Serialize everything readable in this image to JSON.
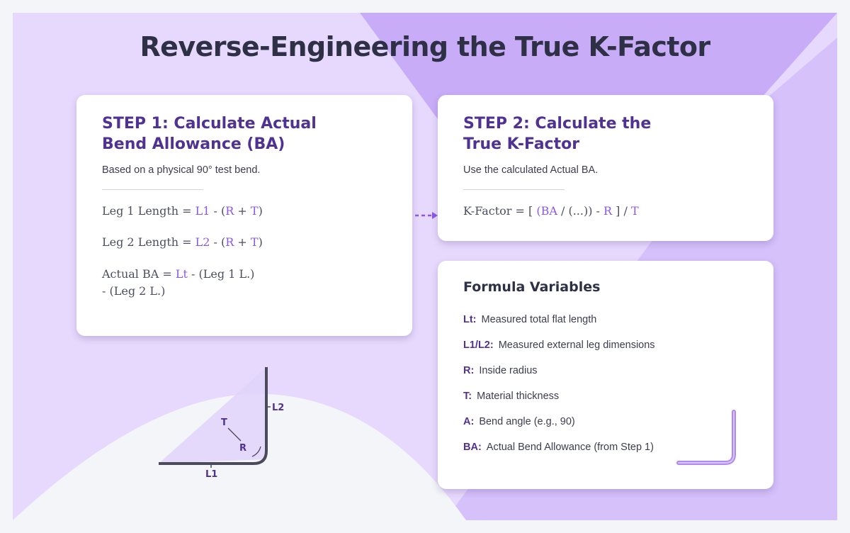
{
  "title": "Reverse-Engineering the True K-Factor",
  "colors": {
    "background": "#e7d9fd",
    "accent_triangle": "#c8acf8",
    "heading": "#2e3146",
    "step_title": "#4f3291",
    "highlight": "#8a58e6"
  },
  "step1": {
    "title_line1": "STEP 1: Calculate Actual",
    "title_line2": "Bend Allowance (BA)",
    "subtitle": "Based on a physical 90° test bend.",
    "formula1": {
      "prefix": "Leg 1 Length = ",
      "var": "L1",
      "mid": " - (",
      "r": "R",
      "plus": " + ",
      "t": "T",
      "end": ")"
    },
    "formula2": {
      "prefix": "Leg 2 Length = ",
      "var": "L2",
      "mid": " - (",
      "r": "R",
      "plus": " + ",
      "t": "T",
      "end": ")"
    },
    "formula3": {
      "prefix": "Actual BA = ",
      "var": "Lt",
      "rest": " - (Leg 1 L.)",
      "line2": "- (Leg 2 L.)"
    }
  },
  "step2": {
    "title_line1": "STEP 2: Calculate the",
    "title_line2": "True K-Factor",
    "subtitle": "Use the calculated Actual BA.",
    "formula": {
      "prefix": "K-Factor = [ ",
      "p1": "(",
      "ba": "BA",
      "mid": " / (...)) - ",
      "r": "R",
      "mid2": " ] / ",
      "t": "T"
    }
  },
  "variables": {
    "title": "Formula Variables",
    "items": [
      {
        "key": "Lt:",
        "desc": "Measured total flat length"
      },
      {
        "key": "L1/L2:",
        "desc": "Measured external leg dimensions"
      },
      {
        "key": "R:",
        "desc": "Inside radius"
      },
      {
        "key": "T:",
        "desc": "Material thickness"
      },
      {
        "key": "A:",
        "desc": "Bend angle (e.g., 90)"
      },
      {
        "key": "BA:",
        "desc": "Actual Bend Allowance (from Step 1)"
      }
    ]
  },
  "diagram": {
    "label_l1": "L1",
    "label_l2": "L2",
    "label_t": "T",
    "label_r": "R"
  }
}
